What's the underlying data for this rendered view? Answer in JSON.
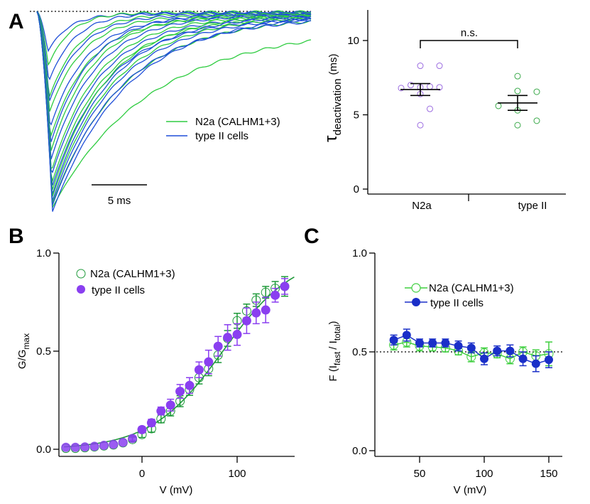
{
  "figure": {
    "panel_letters": [
      "A",
      "B",
      "C"
    ]
  },
  "colors": {
    "green": "#2ecc40",
    "blue": "#1f4fd8",
    "purple_fill": "#8a3ff0",
    "purple_open": "#9a6ae0",
    "darkgreen": "#1f9a3a",
    "navy": "#1a2fc8",
    "lightgreen": "#3fcf3f",
    "scatter_green": "#3aa94a"
  },
  "chart_data": [
    {
      "id": "A-traces",
      "type": "line",
      "title": "",
      "legend": [
        "N2a (CALHM1+3)",
        "type II cells"
      ],
      "legend_position": "center-right",
      "scale_bar_label": "5 ms",
      "scale_bar_ms": 5,
      "baseline": "dotted",
      "series": [
        {
          "name": "N2a (CALHM1+3)",
          "color_key": "green",
          "n_traces": 11,
          "peak_depths_norm": [
            0.27,
            0.43,
            0.5,
            0.63,
            0.7,
            0.8,
            0.86,
            0.9,
            0.93,
            0.96,
            0.98
          ],
          "tau_ms": [
            2.0,
            2.6,
            3.0,
            3.4,
            3.8,
            4.2,
            4.6,
            5.0,
            5.5,
            6.2,
            8.0
          ]
        },
        {
          "name": "type II cells",
          "color_key": "blue",
          "n_traces": 12,
          "peak_depths_norm": [
            0.2,
            0.35,
            0.45,
            0.58,
            0.66,
            0.74,
            0.82,
            0.88,
            0.92,
            0.95,
            0.97,
            1.0
          ],
          "tau_ms": [
            1.8,
            2.3,
            2.8,
            3.2,
            3.6,
            4.0,
            4.4,
            4.8,
            5.2,
            5.6,
            6.0,
            6.6
          ]
        }
      ]
    },
    {
      "id": "A-scatter",
      "type": "scatter",
      "ylabel_main": "τ",
      "ylabel_sub": "deactivation",
      "ylabel_unit": "(ms)",
      "ylim": [
        0,
        12
      ],
      "yticks": [
        0,
        5,
        10
      ],
      "categories": [
        "N2a",
        "type II"
      ],
      "significance": "n.s.",
      "series": [
        {
          "name": "N2a",
          "color_key": "purple_open",
          "points": [
            {
              "dx": 0,
              "y": 8.3
            },
            {
              "dx": 1,
              "y": 8.3
            },
            {
              "dx": -1,
              "y": 6.8
            },
            {
              "dx": -0.5,
              "y": 7.0
            },
            {
              "dx": 0,
              "y": 6.85
            },
            {
              "dx": 0.5,
              "y": 6.9
            },
            {
              "dx": 1,
              "y": 6.85
            },
            {
              "dx": 0,
              "y": 6.4
            },
            {
              "dx": 0.5,
              "y": 5.4
            },
            {
              "dx": 0,
              "y": 4.3
            }
          ],
          "mean": 6.7,
          "sem": 0.4
        },
        {
          "name": "type II",
          "color_key": "scatter_green",
          "points": [
            {
              "dx": 0,
              "y": 7.6
            },
            {
              "dx": 0,
              "y": 6.6
            },
            {
              "dx": 1,
              "y": 6.55
            },
            {
              "dx": -1,
              "y": 5.6
            },
            {
              "dx": 0,
              "y": 5.3
            },
            {
              "dx": 1,
              "y": 4.6
            },
            {
              "dx": 0,
              "y": 4.3
            }
          ],
          "mean": 5.8,
          "sem": 0.5
        }
      ]
    },
    {
      "id": "B",
      "type": "scatter",
      "xlabel": "V (mV)",
      "ylabel_main": "G/G",
      "ylabel_sub": "max",
      "xlim": [
        -87,
        161
      ],
      "ylim": [
        0,
        1.0
      ],
      "xticks": [
        0,
        100
      ],
      "yticks": [
        0.0,
        0.5,
        1.0
      ],
      "ytick_labels": [
        "0.0",
        "0.5",
        "1.0"
      ],
      "legend_position": "top-left",
      "fit_line": {
        "name": "Boltzmann fit",
        "color_key": "darkgreen",
        "v_half": 85,
        "slope": 38,
        "gmax": 1.0
      },
      "series": [
        {
          "name": "N2a (CALHM1+3)",
          "marker": "open-circle",
          "color_key": "darkgreen",
          "x": [
            -80,
            -70,
            -60,
            -50,
            -40,
            -30,
            -20,
            -10,
            0,
            10,
            20,
            30,
            40,
            50,
            60,
            70,
            80,
            90,
            100,
            110,
            120,
            130,
            140,
            150
          ],
          "y": [
            0.005,
            0.005,
            0.008,
            0.012,
            0.017,
            0.022,
            0.033,
            0.05,
            0.075,
            0.105,
            0.155,
            0.195,
            0.245,
            0.305,
            0.365,
            0.41,
            0.48,
            0.565,
            0.655,
            0.705,
            0.76,
            0.8,
            0.82,
            0.83
          ],
          "err": [
            0.005,
            0.005,
            0.005,
            0.005,
            0.006,
            0.008,
            0.01,
            0.012,
            0.015,
            0.018,
            0.02,
            0.025,
            0.028,
            0.03,
            0.032,
            0.035,
            0.038,
            0.04,
            0.038,
            0.035,
            0.032,
            0.03,
            0.035,
            0.05
          ]
        },
        {
          "name": "type II cells",
          "marker": "filled-circle",
          "color_key": "purple_fill",
          "x": [
            -80,
            -70,
            -60,
            -50,
            -40,
            -30,
            -20,
            -10,
            0,
            10,
            20,
            30,
            40,
            50,
            60,
            70,
            80,
            90,
            100,
            110,
            120,
            130,
            140,
            150
          ],
          "y": [
            0.01,
            0.01,
            0.012,
            0.015,
            0.02,
            0.025,
            0.035,
            0.055,
            0.1,
            0.135,
            0.195,
            0.225,
            0.295,
            0.325,
            0.405,
            0.445,
            0.525,
            0.57,
            0.585,
            0.655,
            0.695,
            0.71,
            0.785,
            0.83
          ],
          "err": [
            0.005,
            0.005,
            0.005,
            0.005,
            0.006,
            0.008,
            0.01,
            0.012,
            0.015,
            0.018,
            0.02,
            0.03,
            0.035,
            0.04,
            0.04,
            0.06,
            0.05,
            0.065,
            0.055,
            0.065,
            0.055,
            0.065,
            0.035,
            0.04
          ]
        }
      ]
    },
    {
      "id": "C",
      "type": "line",
      "xlabel": "V (mV)",
      "ylabel_main": "F (I",
      "ylabel_sub1": "fast",
      "ylabel_mid": "/ I",
      "ylabel_sub2": "total",
      "ylabel_end": ")",
      "xlim": [
        15,
        162
      ],
      "ylim": [
        0,
        1.0
      ],
      "xticks": [
        50,
        100,
        150
      ],
      "yticks": [
        0.0,
        0.5,
        1.0
      ],
      "ytick_labels": [
        "0.0",
        "0.5",
        "1.0"
      ],
      "reference_line": 0.5,
      "legend_position": "top-center",
      "series": [
        {
          "name": "N2a (CALHM1+3)",
          "marker": "open-circle",
          "color_key": "lightgreen",
          "x": [
            30,
            40,
            50,
            60,
            70,
            80,
            90,
            100,
            110,
            120,
            130,
            140,
            150
          ],
          "y": [
            0.535,
            0.55,
            0.53,
            0.525,
            0.52,
            0.505,
            0.475,
            0.495,
            0.49,
            0.465,
            0.5,
            0.48,
            0.49
          ],
          "err": [
            0.025,
            0.025,
            0.025,
            0.02,
            0.02,
            0.02,
            0.025,
            0.025,
            0.02,
            0.025,
            0.025,
            0.03,
            0.06
          ]
        },
        {
          "name": "type II cells",
          "marker": "filled-circle",
          "color_key": "navy",
          "x": [
            30,
            40,
            50,
            60,
            70,
            80,
            90,
            100,
            110,
            120,
            130,
            140,
            150
          ],
          "y": [
            0.56,
            0.585,
            0.545,
            0.545,
            0.545,
            0.53,
            0.52,
            0.465,
            0.505,
            0.505,
            0.465,
            0.44,
            0.46
          ],
          "err": [
            0.025,
            0.03,
            0.02,
            0.02,
            0.02,
            0.025,
            0.025,
            0.03,
            0.025,
            0.03,
            0.035,
            0.04,
            0.04
          ]
        }
      ]
    }
  ]
}
